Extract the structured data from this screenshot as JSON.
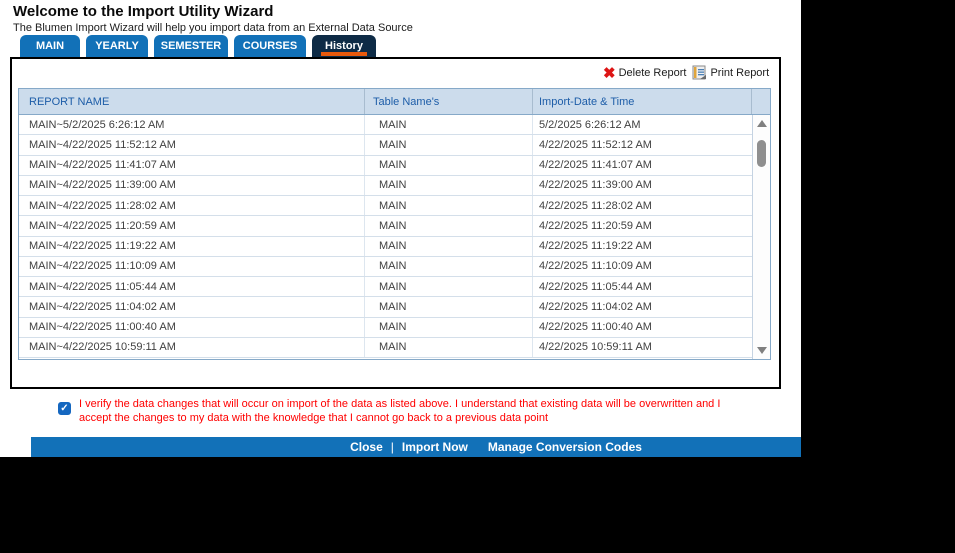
{
  "window": {
    "title": "Welcome to the Import Utility Wizard",
    "subtitle": "The Blumen Import Wizard will help you import data from an External Data Source"
  },
  "tabs": [
    {
      "label": "MAIN",
      "active": false
    },
    {
      "label": "YEARLY",
      "active": false
    },
    {
      "label": "SEMESTER",
      "active": false
    },
    {
      "label": "COURSES",
      "active": false
    },
    {
      "label": "History",
      "active": true
    }
  ],
  "toolbar": {
    "delete_label": "Delete Report",
    "delete_icon": "red-x-icon",
    "print_label": "Print Report",
    "print_icon": "report-document-icon"
  },
  "table": {
    "columns": [
      "REPORT NAME",
      "Table Name's",
      "Import-Date & Time"
    ],
    "rows": [
      {
        "report_name": "MAIN~5/2/2025 6:26:12 AM",
        "table_name": "MAIN",
        "import_date": "5/2/2025 6:26:12 AM"
      },
      {
        "report_name": "MAIN~4/22/2025 11:52:12 AM",
        "table_name": "MAIN",
        "import_date": "4/22/2025 11:52:12 AM"
      },
      {
        "report_name": "MAIN~4/22/2025 11:41:07 AM",
        "table_name": "MAIN",
        "import_date": "4/22/2025 11:41:07 AM"
      },
      {
        "report_name": "MAIN~4/22/2025 11:39:00 AM",
        "table_name": "MAIN",
        "import_date": "4/22/2025 11:39:00 AM"
      },
      {
        "report_name": "MAIN~4/22/2025 11:28:02 AM",
        "table_name": "MAIN",
        "import_date": "4/22/2025 11:28:02 AM"
      },
      {
        "report_name": "MAIN~4/22/2025 11:20:59 AM",
        "table_name": "MAIN",
        "import_date": "4/22/2025 11:20:59 AM"
      },
      {
        "report_name": "MAIN~4/22/2025 11:19:22 AM",
        "table_name": "MAIN",
        "import_date": "4/22/2025 11:19:22 AM"
      },
      {
        "report_name": "MAIN~4/22/2025 11:10:09 AM",
        "table_name": "MAIN",
        "import_date": "4/22/2025 11:10:09 AM"
      },
      {
        "report_name": "MAIN~4/22/2025 11:05:44 AM",
        "table_name": "MAIN",
        "import_date": "4/22/2025 11:05:44 AM"
      },
      {
        "report_name": "MAIN~4/22/2025 11:04:02 AM",
        "table_name": "MAIN",
        "import_date": "4/22/2025 11:04:02 AM"
      },
      {
        "report_name": "MAIN~4/22/2025 11:00:40 AM",
        "table_name": "MAIN",
        "import_date": "4/22/2025 11:00:40 AM"
      },
      {
        "report_name": "MAIN~4/22/2025 10:59:11 AM",
        "table_name": "MAIN",
        "import_date": "4/22/2025 10:59:11 AM"
      }
    ]
  },
  "confirmation": {
    "checked": true,
    "text": "I verify the data changes that will occur on import of the data as listed above. I understand that existing data will be overwritten and I accept the changes to my data with the knowledge that I cannot go back to a previous data point"
  },
  "footer": {
    "close_label": "Close",
    "separator": "|",
    "import_now_label": "Import Now",
    "manage_label": "Manage Conversion Codes"
  },
  "colors": {
    "tab_blue": "#1271b8",
    "active_tab_navy": "#0e2b46",
    "accent_orange": "#e8590c",
    "header_bg": "#ccdcec",
    "header_text": "#1d5da8",
    "warning_red": "#ff0000",
    "footer_bar_blue": "#1271b8",
    "delete_x_red": "#dd1515"
  }
}
